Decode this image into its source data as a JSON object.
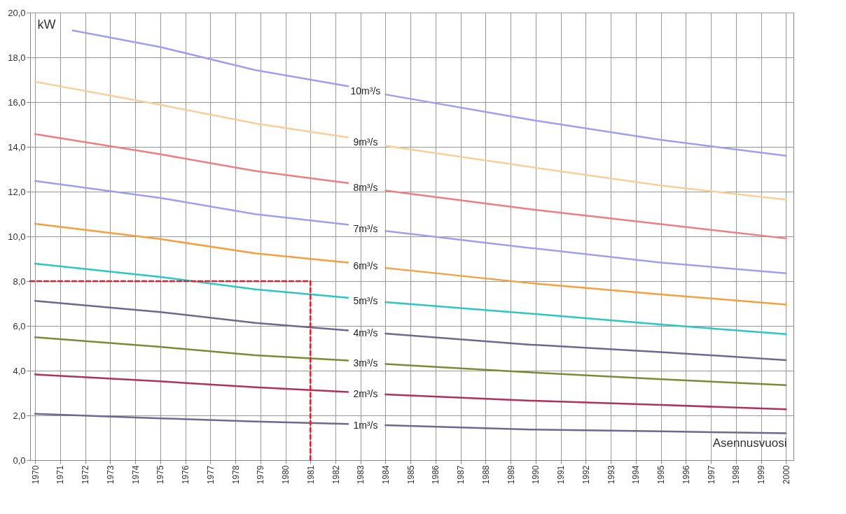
{
  "chart_data": {
    "type": "line",
    "xlabel": "Asennusvuosi",
    "ylabel": "kW",
    "xlim": [
      1969.8,
      2000.3
    ],
    "ylim": [
      0,
      20
    ],
    "xticks": [
      1970,
      1971,
      1972,
      1973,
      1974,
      1975,
      1976,
      1977,
      1978,
      1979,
      1980,
      1981,
      1982,
      1983,
      1984,
      1985,
      1986,
      1987,
      1988,
      1989,
      1990,
      1991,
      1992,
      1993,
      1994,
      1995,
      1996,
      1997,
      1998,
      1999,
      2000
    ],
    "yticks": [
      {
        "value": 0,
        "label": "0,0"
      },
      {
        "value": 2,
        "label": "2,0"
      },
      {
        "value": 4,
        "label": "4,0"
      },
      {
        "value": 6,
        "label": "6,0"
      },
      {
        "value": 8,
        "label": "8,0"
      },
      {
        "value": 10,
        "label": "10,0"
      },
      {
        "value": 12,
        "label": "12,0"
      },
      {
        "value": 14,
        "label": "14,0"
      },
      {
        "value": 16,
        "label": "16,0"
      },
      {
        "value": 18,
        "label": "18,0"
      },
      {
        "value": 20,
        "label": "20,0"
      }
    ],
    "grid": true,
    "line_style": "solid",
    "series": [
      {
        "name": "10m³/s",
        "color": "#9f9ff0",
        "x": [
          1971.5,
          1975,
          1978.8,
          1982.5,
          1983.2,
          1984,
          1989.8,
          1995,
          2000
        ],
        "values": [
          19.2,
          18.46,
          17.43,
          16.71,
          null,
          16.34,
          15.21,
          14.31,
          13.6
        ]
      },
      {
        "name": "9m³/s",
        "color": "#f8cf9c",
        "x": [
          1970,
          1975,
          1978.8,
          1982.5,
          1983.2,
          1984,
          1989.8,
          1995,
          2000
        ],
        "values": [
          16.91,
          15.88,
          15.05,
          14.42,
          null,
          14.05,
          13.1,
          12.27,
          11.64
        ]
      },
      {
        "name": "8m³/s",
        "color": "#ee7f80",
        "x": [
          1970,
          1975,
          1978.8,
          1982.5,
          1983.2,
          1984,
          1989.8,
          1995,
          2000
        ],
        "values": [
          14.57,
          13.67,
          12.92,
          12.38,
          null,
          12.05,
          11.21,
          10.55,
          9.91
        ]
      },
      {
        "name": "7m³/s",
        "color": "#9f9ff0",
        "x": [
          1970,
          1975,
          1978.8,
          1982.5,
          1983.2,
          1984,
          1989.8,
          1995,
          2000
        ],
        "values": [
          12.48,
          11.72,
          10.99,
          10.52,
          null,
          10.24,
          9.48,
          8.83,
          8.35
        ]
      },
      {
        "name": "6m³/s",
        "color": "#f5a040",
        "x": [
          1970,
          1975,
          1978.8,
          1982.5,
          1983.2,
          1984,
          1989.8,
          1995,
          2000
        ],
        "values": [
          10.56,
          9.88,
          9.24,
          8.83,
          null,
          8.59,
          7.91,
          7.41,
          6.95
        ]
      },
      {
        "name": "5m³/s",
        "color": "#2cc8c0",
        "x": [
          1970,
          1975,
          1978.8,
          1982.5,
          1983.2,
          1984,
          1989.8,
          1995,
          2000
        ],
        "values": [
          8.78,
          8.19,
          7.63,
          7.26,
          null,
          7.06,
          6.55,
          6.06,
          5.63
        ]
      },
      {
        "name": "4m³/s",
        "color": "#6e6890",
        "x": [
          1970,
          1975,
          1978.8,
          1982.5,
          1983.2,
          1984,
          1989.8,
          1995,
          2000
        ],
        "values": [
          7.12,
          6.62,
          6.13,
          5.8,
          null,
          5.66,
          5.16,
          4.83,
          4.47
        ]
      },
      {
        "name": "3m³/s",
        "color": "#7d8a35",
        "x": [
          1970,
          1975,
          1978.8,
          1982.5,
          1983.2,
          1984,
          1989.8,
          1995,
          2000
        ],
        "values": [
          5.49,
          5.06,
          4.69,
          4.45,
          null,
          4.3,
          3.92,
          3.62,
          3.35
        ]
      },
      {
        "name": "2m³/s",
        "color": "#b0305e",
        "x": [
          1970,
          1975,
          1978.8,
          1982.5,
          1983.2,
          1984,
          1989.8,
          1995,
          2000
        ],
        "values": [
          3.83,
          3.52,
          3.26,
          3.05,
          null,
          2.94,
          2.66,
          2.47,
          2.27
        ]
      },
      {
        "name": "1m³/s",
        "color": "#6e6890",
        "x": [
          1970,
          1975,
          1978.8,
          1982.5,
          1983.2,
          1984,
          1989.8,
          1995,
          2000
        ],
        "values": [
          2.07,
          1.87,
          1.73,
          1.62,
          null,
          1.56,
          1.37,
          1.29,
          1.2
        ]
      },
      {
        "color": "#e02030",
        "line_style": "dashed",
        "x": [
          1969.8,
          1981,
          1981
        ],
        "values": [
          8,
          8,
          0
        ]
      }
    ]
  }
}
